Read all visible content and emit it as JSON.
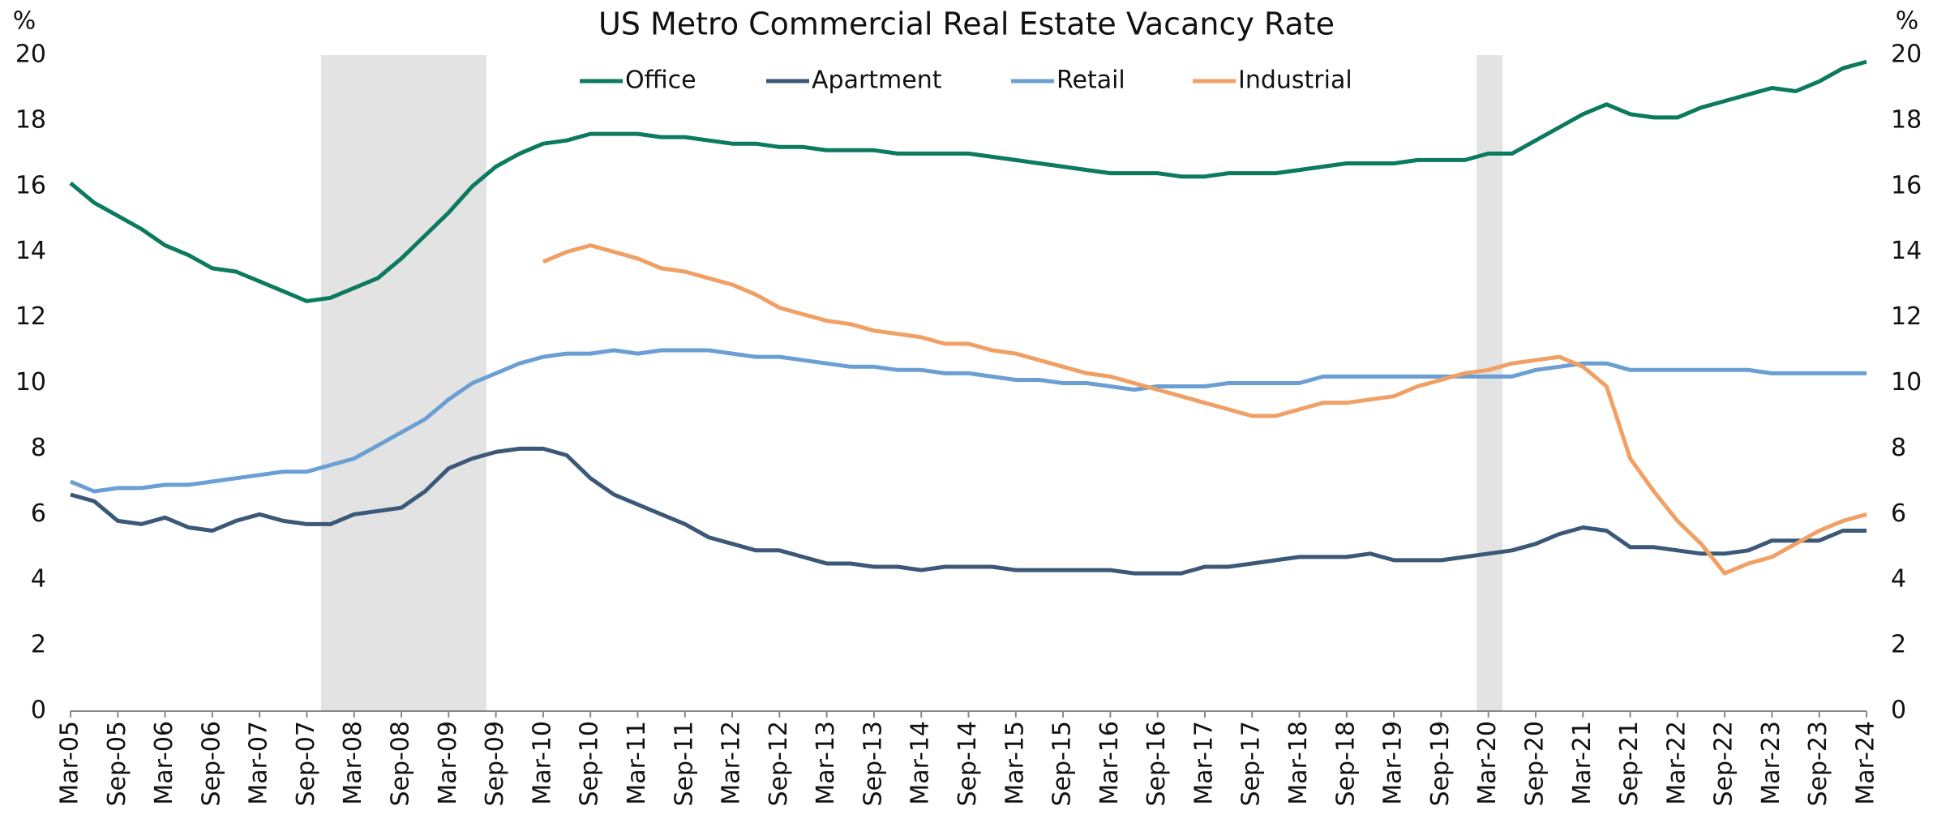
{
  "chart_data": {
    "type": "line",
    "title": "US Metro Commercial Real Estate Vacancy Rate",
    "ylabel": "%",
    "y2label": "%",
    "categories": [
      "Mar-05",
      null,
      "Sep-05",
      null,
      "Mar-06",
      null,
      "Sep-06",
      null,
      "Mar-07",
      null,
      "Sep-07",
      null,
      "Mar-08",
      null,
      "Sep-08",
      null,
      "Mar-09",
      null,
      "Sep-09",
      null,
      "Mar-10",
      null,
      "Sep-10",
      null,
      "Mar-11",
      null,
      "Sep-11",
      null,
      "Mar-12",
      null,
      "Sep-12",
      null,
      "Mar-13",
      null,
      "Sep-13",
      null,
      "Mar-14",
      null,
      "Sep-14",
      null,
      "Mar-15",
      null,
      "Sep-15",
      null,
      "Mar-16",
      null,
      "Sep-16",
      null,
      "Mar-17",
      null,
      "Sep-17",
      null,
      "Mar-18",
      null,
      "Sep-18",
      null,
      "Mar-19",
      null,
      "Sep-19",
      null,
      "Mar-20",
      null,
      "Sep-20",
      null,
      "Mar-21",
      null,
      "Sep-21",
      null,
      "Mar-22",
      null,
      "Sep-22",
      null,
      "Mar-23",
      null,
      "Sep-23",
      null,
      "Mar-24"
    ],
    "series": [
      {
        "name": "Office",
        "color": "#0b7a5e",
        "values": [
          16.1,
          15.5,
          15.1,
          14.7,
          14.2,
          13.9,
          13.5,
          13.4,
          13.1,
          12.8,
          12.5,
          12.6,
          12.9,
          13.2,
          13.8,
          14.5,
          15.2,
          16.0,
          16.6,
          17.0,
          17.3,
          17.4,
          17.6,
          17.6,
          17.6,
          17.5,
          17.5,
          17.4,
          17.3,
          17.3,
          17.2,
          17.2,
          17.1,
          17.1,
          17.1,
          17.0,
          17.0,
          17.0,
          17.0,
          16.9,
          16.8,
          16.7,
          16.6,
          16.5,
          16.4,
          16.4,
          16.4,
          16.3,
          16.3,
          16.4,
          16.4,
          16.4,
          16.5,
          16.6,
          16.7,
          16.7,
          16.7,
          16.8,
          16.8,
          16.8,
          17.0,
          17.0,
          17.4,
          17.8,
          18.2,
          18.5,
          18.2,
          18.1,
          18.1,
          18.4,
          18.6,
          18.8,
          19.0,
          18.9,
          19.2,
          19.6,
          19.8
        ]
      },
      {
        "name": "Apartment",
        "color": "#3b5878",
        "values": [
          6.6,
          6.4,
          5.8,
          5.7,
          5.9,
          5.6,
          5.5,
          5.8,
          6.0,
          5.8,
          5.7,
          5.7,
          6.0,
          6.1,
          6.2,
          6.7,
          7.4,
          7.7,
          7.9,
          8.0,
          8.0,
          7.8,
          7.1,
          6.6,
          6.3,
          6.0,
          5.7,
          5.3,
          5.1,
          4.9,
          4.9,
          4.7,
          4.5,
          4.5,
          4.4,
          4.4,
          4.3,
          4.4,
          4.4,
          4.4,
          4.3,
          4.3,
          4.3,
          4.3,
          4.3,
          4.2,
          4.2,
          4.2,
          4.4,
          4.4,
          4.5,
          4.6,
          4.7,
          4.7,
          4.7,
          4.8,
          4.6,
          4.6,
          4.6,
          4.7,
          4.8,
          4.9,
          5.1,
          5.4,
          5.6,
          5.5,
          5.0,
          5.0,
          4.9,
          4.8,
          4.8,
          4.9,
          5.2,
          5.2,
          5.2,
          5.5,
          5.5
        ]
      },
      {
        "name": "Retail",
        "color": "#6b9fd4",
        "values": [
          7.0,
          6.7,
          6.8,
          6.8,
          6.9,
          6.9,
          7.0,
          7.1,
          7.2,
          7.3,
          7.3,
          7.5,
          7.7,
          8.1,
          8.5,
          8.9,
          9.5,
          10.0,
          10.3,
          10.6,
          10.8,
          10.9,
          10.9,
          11.0,
          10.9,
          11.0,
          11.0,
          11.0,
          10.9,
          10.8,
          10.8,
          10.7,
          10.6,
          10.5,
          10.5,
          10.4,
          10.4,
          10.3,
          10.3,
          10.2,
          10.1,
          10.1,
          10.0,
          10.0,
          9.9,
          9.8,
          9.9,
          9.9,
          9.9,
          10.0,
          10.0,
          10.0,
          10.0,
          10.2,
          10.2,
          10.2,
          10.2,
          10.2,
          10.2,
          10.2,
          10.2,
          10.2,
          10.4,
          10.5,
          10.6,
          10.6,
          10.4,
          10.4,
          10.4,
          10.4,
          10.4,
          10.4,
          10.3,
          10.3,
          10.3,
          10.3,
          10.3
        ]
      },
      {
        "name": "Industrial",
        "color": "#f0a064",
        "values": [
          null,
          null,
          null,
          null,
          null,
          null,
          null,
          null,
          null,
          null,
          null,
          null,
          null,
          null,
          null,
          null,
          null,
          null,
          null,
          null,
          13.7,
          14.0,
          14.2,
          14.0,
          13.8,
          13.5,
          13.4,
          13.2,
          13.0,
          12.7,
          12.3,
          12.1,
          11.9,
          11.8,
          11.6,
          11.5,
          11.4,
          11.2,
          11.2,
          11.0,
          10.9,
          10.7,
          10.5,
          10.3,
          10.2,
          10.0,
          9.8,
          9.6,
          9.4,
          9.2,
          9.0,
          9.0,
          9.2,
          9.4,
          9.4,
          9.5,
          9.6,
          9.9,
          10.1,
          10.3,
          10.4,
          10.6,
          10.7,
          10.8,
          10.5,
          9.9,
          7.7,
          6.7,
          5.8,
          5.1,
          4.2,
          4.5,
          4.7,
          5.1,
          5.5,
          5.8,
          6.0
        ]
      }
    ],
    "shaded_x_ranges": [
      [
        10.6,
        17.6
      ],
      [
        59.5,
        60.6
      ]
    ],
    "shade_color": "#e3e3e3",
    "ylim": [
      0,
      20
    ],
    "yticks": [
      0,
      2,
      4,
      6,
      8,
      10,
      12,
      14,
      16,
      18,
      20
    ],
    "y2lim": [
      0,
      20
    ],
    "y2ticks": [
      0,
      2,
      4,
      6,
      8,
      10,
      12,
      14,
      16,
      18,
      20
    ],
    "grid": false,
    "legend": "top"
  }
}
